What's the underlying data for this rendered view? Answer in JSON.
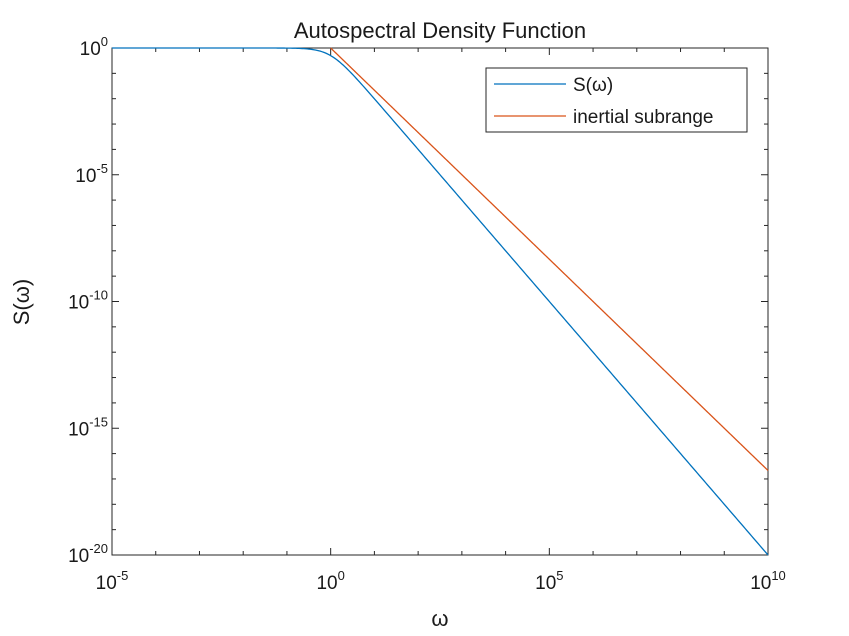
{
  "chart_data": {
    "type": "line",
    "title": "Autospectral Density Function",
    "xlabel": "ω",
    "ylabel": "S(ω)",
    "xscale": "log",
    "yscale": "log",
    "xlim_exponent": [
      -5,
      10
    ],
    "ylim_exponent": [
      -20,
      0
    ],
    "x_ticks": [
      {
        "base": "10",
        "exp": "-5",
        "value": -5
      },
      {
        "base": "10",
        "exp": "0",
        "value": 0
      },
      {
        "base": "10",
        "exp": "5",
        "value": 5
      },
      {
        "base": "10",
        "exp": "10",
        "value": 10
      }
    ],
    "y_ticks": [
      {
        "base": "10",
        "exp": "0",
        "value": 0
      },
      {
        "base": "10",
        "exp": "-5",
        "value": -5
      },
      {
        "base": "10",
        "exp": "-10",
        "value": -10
      },
      {
        "base": "10",
        "exp": "-15",
        "value": -15
      },
      {
        "base": "10",
        "exp": "-20",
        "value": -20
      }
    ],
    "grid": false,
    "legend_position": "top-right",
    "series": [
      {
        "name": "S(ω)",
        "color": "#0072BD",
        "formula": "1/(1+ω^2)",
        "x_log10_range": [
          -5,
          10
        ]
      },
      {
        "name": "inertial subrange",
        "color": "#D95319",
        "formula": "ω^(-5/3)",
        "x_log10_range": [
          0,
          10
        ]
      }
    ]
  }
}
